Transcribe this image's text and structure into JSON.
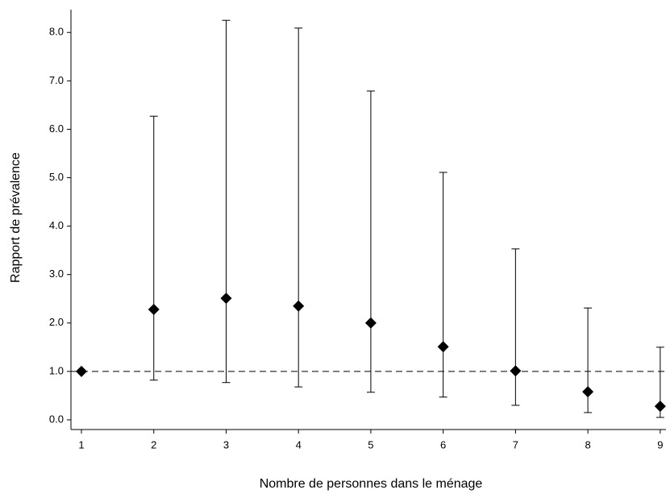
{
  "chart_data": {
    "type": "errorbar",
    "xlabel": "Nombre de personnes dans le ménage",
    "ylabel": "Rapport de prévalence",
    "x": [
      1,
      2,
      3,
      4,
      5,
      6,
      7,
      8,
      9
    ],
    "values": [
      1.0,
      2.28,
      2.51,
      2.35,
      2.0,
      1.51,
      1.01,
      0.58,
      0.28
    ],
    "lower": [
      null,
      0.82,
      0.77,
      0.68,
      0.57,
      0.47,
      0.3,
      0.15,
      0.05
    ],
    "upper": [
      null,
      6.27,
      8.25,
      8.09,
      6.79,
      5.11,
      3.53,
      2.31,
      1.5
    ],
    "color": "#000000",
    "reference_line": 1,
    "xlim": [
      0.855,
      9.08
    ],
    "ylim": [
      -0.2,
      8.47
    ],
    "xticks": [
      1,
      2,
      3,
      4,
      5,
      6,
      7,
      8,
      9
    ],
    "yticks": [
      {
        "value": 0,
        "label": "0.0"
      },
      {
        "value": 1,
        "label": "1.0"
      },
      {
        "value": 2,
        "label": "2.0"
      },
      {
        "value": 3,
        "label": "3.0"
      },
      {
        "value": 4,
        "label": "4.0"
      },
      {
        "value": 5,
        "label": "5.0"
      },
      {
        "value": 6,
        "label": "6.0"
      },
      {
        "value": 7,
        "label": "7.0"
      },
      {
        "value": 8,
        "label": "8.0"
      }
    ]
  }
}
